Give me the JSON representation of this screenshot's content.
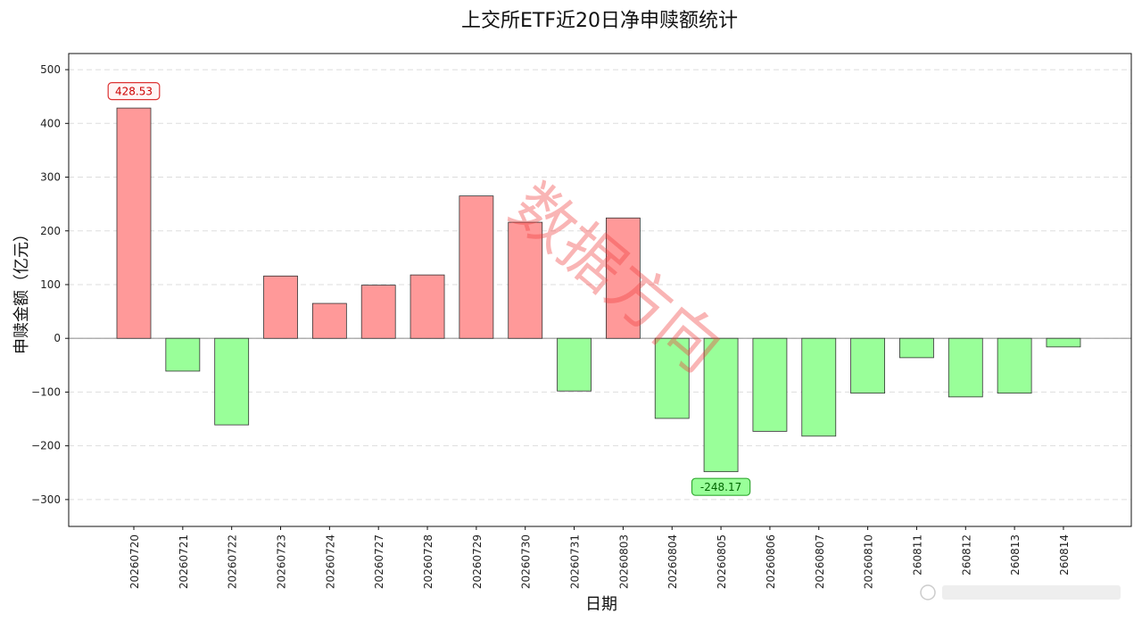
{
  "chart_data": {
    "type": "bar",
    "title": "上交所ETF近20日净申赎额统计",
    "xlabel": "日期",
    "ylabel": "申赎金额（亿元）",
    "ylim": [
      -350,
      530
    ],
    "yticks": [
      500,
      400,
      300,
      200,
      100,
      0,
      -100,
      -200,
      -300
    ],
    "grid": "horizontal dashed",
    "categories": [
      "20260720",
      "20260721",
      "20260722",
      "20260723",
      "20260724",
      "20260727",
      "20260728",
      "20260729",
      "20260730",
      "20260731",
      "20260803",
      "20260804",
      "20260805",
      "20260806",
      "20260807",
      "20260810",
      "260811",
      "260812",
      "260813",
      "260814"
    ],
    "values": [
      428.53,
      -61,
      -161,
      116,
      65,
      99,
      118,
      265,
      216,
      -98,
      224,
      -149,
      -248.17,
      -173,
      -182,
      -102,
      -36,
      -109,
      -102,
      -16
    ],
    "annotations": [
      {
        "index": 0,
        "text": "428.53",
        "position": "above",
        "kind": "max"
      },
      {
        "index": 12,
        "text": "-248.17",
        "position": "below",
        "kind": "min"
      }
    ],
    "colors": {
      "positive": "#ff9999",
      "negative": "#99ff99",
      "edge": "#333333",
      "max_text": "#cc0000",
      "max_border": "#dd3333",
      "min_text": "#006600",
      "min_border": "#33aa33",
      "zero_line": "#999999",
      "grid": "#dddddd"
    }
  },
  "watermark": {
    "text": "数据方向",
    "color": "#f03c3c"
  },
  "source_mark": {
    "text": "@"
  }
}
